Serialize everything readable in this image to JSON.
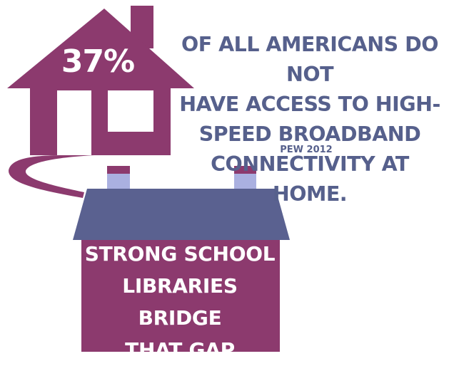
{
  "stat": {
    "value": "37%"
  },
  "headline": {
    "lines": [
      "OF ALL AMERICANS DO NOT",
      "HAVE ACCESS TO HIGH-",
      "SPEED BROADBAND",
      "CONNECTIVITY AT HOME."
    ],
    "source": "PEW 2012"
  },
  "tagline": {
    "lines": [
      "STRONG SCHOOL",
      "LIBRARIES BRIDGE",
      "THAT GAP"
    ]
  },
  "colors": {
    "house": "#8c3a6e",
    "text_blue": "#56608c",
    "roof_blue": "#5a6190",
    "chimney_light": "#aab0e0",
    "background": "#ffffff"
  },
  "icons": {
    "home": "house-icon",
    "school": "school-building-icon"
  }
}
